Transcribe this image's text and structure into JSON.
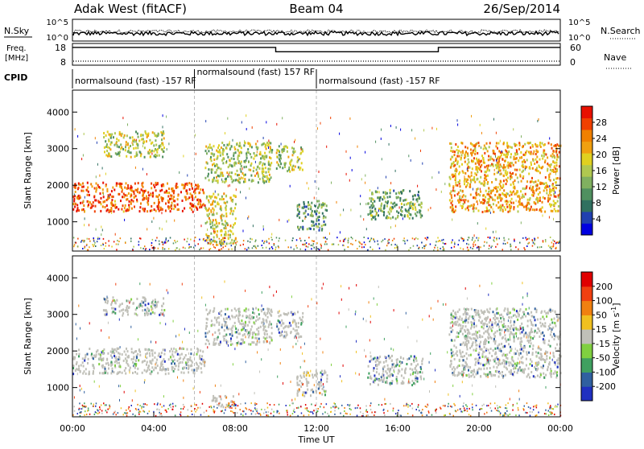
{
  "header": {
    "title_left": "Adak West (fitACF)",
    "title_center": "Beam 04",
    "title_right": "26/Sep/2014"
  },
  "noise_panel": {
    "left_label": "N.Sky",
    "right_label": "N.Search",
    "left_ticks": [
      "10^5",
      "10^0"
    ],
    "right_ticks": [
      "10^5",
      "10^0"
    ]
  },
  "freq_panel": {
    "left_label_1": "Freq.",
    "left_label_2": "[MHz]",
    "left_ticks": [
      "18",
      "8"
    ],
    "right_label": "Nave",
    "right_ticks": [
      "60",
      "0"
    ],
    "freq_steps": [
      {
        "start": 0,
        "end": 10,
        "level": 16.2
      },
      {
        "start": 10,
        "end": 18,
        "level": 14.2
      },
      {
        "start": 18,
        "end": 24,
        "level": 16.2
      }
    ]
  },
  "cpid_panel": {
    "label": "CPID",
    "segments": [
      {
        "start": 0,
        "text": "normalsound (fast) -157 RF",
        "row": 1
      },
      {
        "start": 6,
        "text": "normalsound (fast) 157 RF",
        "row": 0
      },
      {
        "start": 12,
        "text": "normalsound (fast) -157 RF",
        "row": 1
      }
    ]
  },
  "chart_data": [
    {
      "type": "heatmap",
      "name": "power",
      "ylabel": "Slant Range [km]",
      "x_range": [
        0,
        24
      ],
      "ylim": [
        200,
        4600
      ],
      "yticks": [
        "1000",
        "2000",
        "3000",
        "4000"
      ],
      "colorbar": {
        "label": "Power [dB]",
        "ticks": [
          "28",
          "24",
          "20",
          "16",
          "12",
          "8",
          "4"
        ],
        "colors": [
          "#0000e0",
          "#2040b0",
          "#307060",
          "#509060",
          "#80b060",
          "#b0c850",
          "#e0d020",
          "#f0a010",
          "#f08000",
          "#f04000",
          "#e81000"
        ]
      },
      "bands": [
        {
          "x0": 0.0,
          "x1": 6.5,
          "y0": 1300,
          "y1": 2100,
          "intensity": 0.9
        },
        {
          "x0": 1.5,
          "x1": 4.5,
          "y0": 2800,
          "y1": 3500,
          "intensity": 0.45
        },
        {
          "x0": 6.5,
          "x1": 9.8,
          "y0": 2100,
          "y1": 3200,
          "intensity": 0.4
        },
        {
          "x0": 6.5,
          "x1": 8.0,
          "y0": 400,
          "y1": 1800,
          "intensity": 0.5
        },
        {
          "x0": 10.0,
          "x1": 11.3,
          "y0": 2400,
          "y1": 3100,
          "intensity": 0.4
        },
        {
          "x0": 11.0,
          "x1": 12.5,
          "y0": 800,
          "y1": 1600,
          "intensity": 0.2
        },
        {
          "x0": 14.5,
          "x1": 17.2,
          "y0": 1100,
          "y1": 1900,
          "intensity": 0.25
        },
        {
          "x0": 18.5,
          "x1": 24.0,
          "y0": 1300,
          "y1": 3200,
          "intensity": 0.7
        }
      ]
    },
    {
      "type": "heatmap",
      "name": "velocity",
      "ylabel": "Slant Range [km]",
      "xlabel": "Time UT",
      "x_range": [
        0,
        24
      ],
      "xticks": [
        "00:00",
        "04:00",
        "08:00",
        "12:00",
        "16:00",
        "20:00",
        "00:00"
      ],
      "ylim": [
        200,
        4600
      ],
      "yticks": [
        "1000",
        "2000",
        "3000",
        "4000"
      ],
      "colorbar": {
        "label": "Velocity [m s^-1]",
        "ticks": [
          "200",
          "100",
          "50",
          "15",
          "-15",
          "-50",
          "-100",
          "-200"
        ],
        "colors": [
          "#2030c0",
          "#3060a0",
          "#40a060",
          "#80d040",
          "#c0c0b8",
          "#f0c020",
          "#f08010",
          "#f04010",
          "#e00000"
        ]
      },
      "bands": [
        {
          "x0": 0.0,
          "x1": 6.5,
          "y0": 1400,
          "y1": 2100,
          "intensity": 0.5
        },
        {
          "x0": 1.5,
          "x1": 4.5,
          "y0": 3000,
          "y1": 3500,
          "intensity": 0.5
        },
        {
          "x0": 6.5,
          "x1": 9.8,
          "y0": 2200,
          "y1": 3200,
          "intensity": 0.5
        },
        {
          "x0": 6.8,
          "x1": 8.0,
          "y0": 500,
          "y1": 800,
          "intensity": 0.85
        },
        {
          "x0": 10.0,
          "x1": 11.3,
          "y0": 2400,
          "y1": 3100,
          "intensity": 0.5
        },
        {
          "x0": 11.0,
          "x1": 12.5,
          "y0": 800,
          "y1": 1500,
          "intensity": 0.8
        },
        {
          "x0": 14.5,
          "x1": 17.2,
          "y0": 1100,
          "y1": 1900,
          "intensity": 0.3
        },
        {
          "x0": 18.5,
          "x1": 24.0,
          "y0": 1300,
          "y1": 3200,
          "intensity": 0.5
        }
      ]
    }
  ]
}
